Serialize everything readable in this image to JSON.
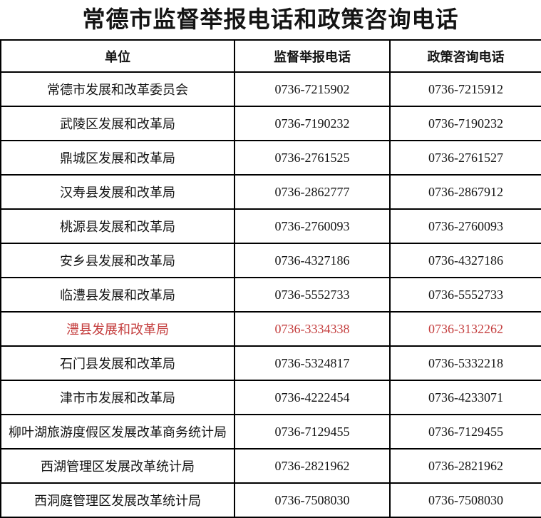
{
  "title": "常德市监督举报电话和政策咨询电话",
  "colors": {
    "text": "#141414",
    "border": "#000000",
    "highlight": "#c43d3d",
    "background": "#ffffff"
  },
  "table": {
    "headers": [
      "单位",
      "监督举报电话",
      "政策咨询电话"
    ],
    "rows": [
      {
        "unit": "常德市发展和改革委员会",
        "report_phone": "0736-7215902",
        "consult_phone": "0736-7215912",
        "highlighted": false
      },
      {
        "unit": "武陵区发展和改革局",
        "report_phone": "0736-7190232",
        "consult_phone": "0736-7190232",
        "highlighted": false
      },
      {
        "unit": "鼎城区发展和改革局",
        "report_phone": "0736-2761525",
        "consult_phone": "0736-2761527",
        "highlighted": false
      },
      {
        "unit": "汉寿县发展和改革局",
        "report_phone": "0736-2862777",
        "consult_phone": "0736-2867912",
        "highlighted": false
      },
      {
        "unit": "桃源县发展和改革局",
        "report_phone": "0736-2760093",
        "consult_phone": "0736-2760093",
        "highlighted": false
      },
      {
        "unit": "安乡县发展和改革局",
        "report_phone": "0736-4327186",
        "consult_phone": "0736-4327186",
        "highlighted": false
      },
      {
        "unit": "临澧县发展和改革局",
        "report_phone": "0736-5552733",
        "consult_phone": "0736-5552733",
        "highlighted": false
      },
      {
        "unit": "澧县发展和改革局",
        "report_phone": "0736-3334338",
        "consult_phone": "0736-3132262",
        "highlighted": true
      },
      {
        "unit": "石门县发展和改革局",
        "report_phone": "0736-5324817",
        "consult_phone": "0736-5332218",
        "highlighted": false
      },
      {
        "unit": "津市市发展和改革局",
        "report_phone": "0736-4222454",
        "consult_phone": "0736-4233071",
        "highlighted": false
      },
      {
        "unit": "柳叶湖旅游度假区发展改革商务统计局",
        "report_phone": "0736-7129455",
        "consult_phone": "0736-7129455",
        "highlighted": false
      },
      {
        "unit": "西湖管理区发展改革统计局",
        "report_phone": "0736-2821962",
        "consult_phone": "0736-2821962",
        "highlighted": false
      },
      {
        "unit": "西洞庭管理区发展改革统计局",
        "report_phone": "0736-7508030",
        "consult_phone": "0736-7508030",
        "highlighted": false
      }
    ]
  }
}
